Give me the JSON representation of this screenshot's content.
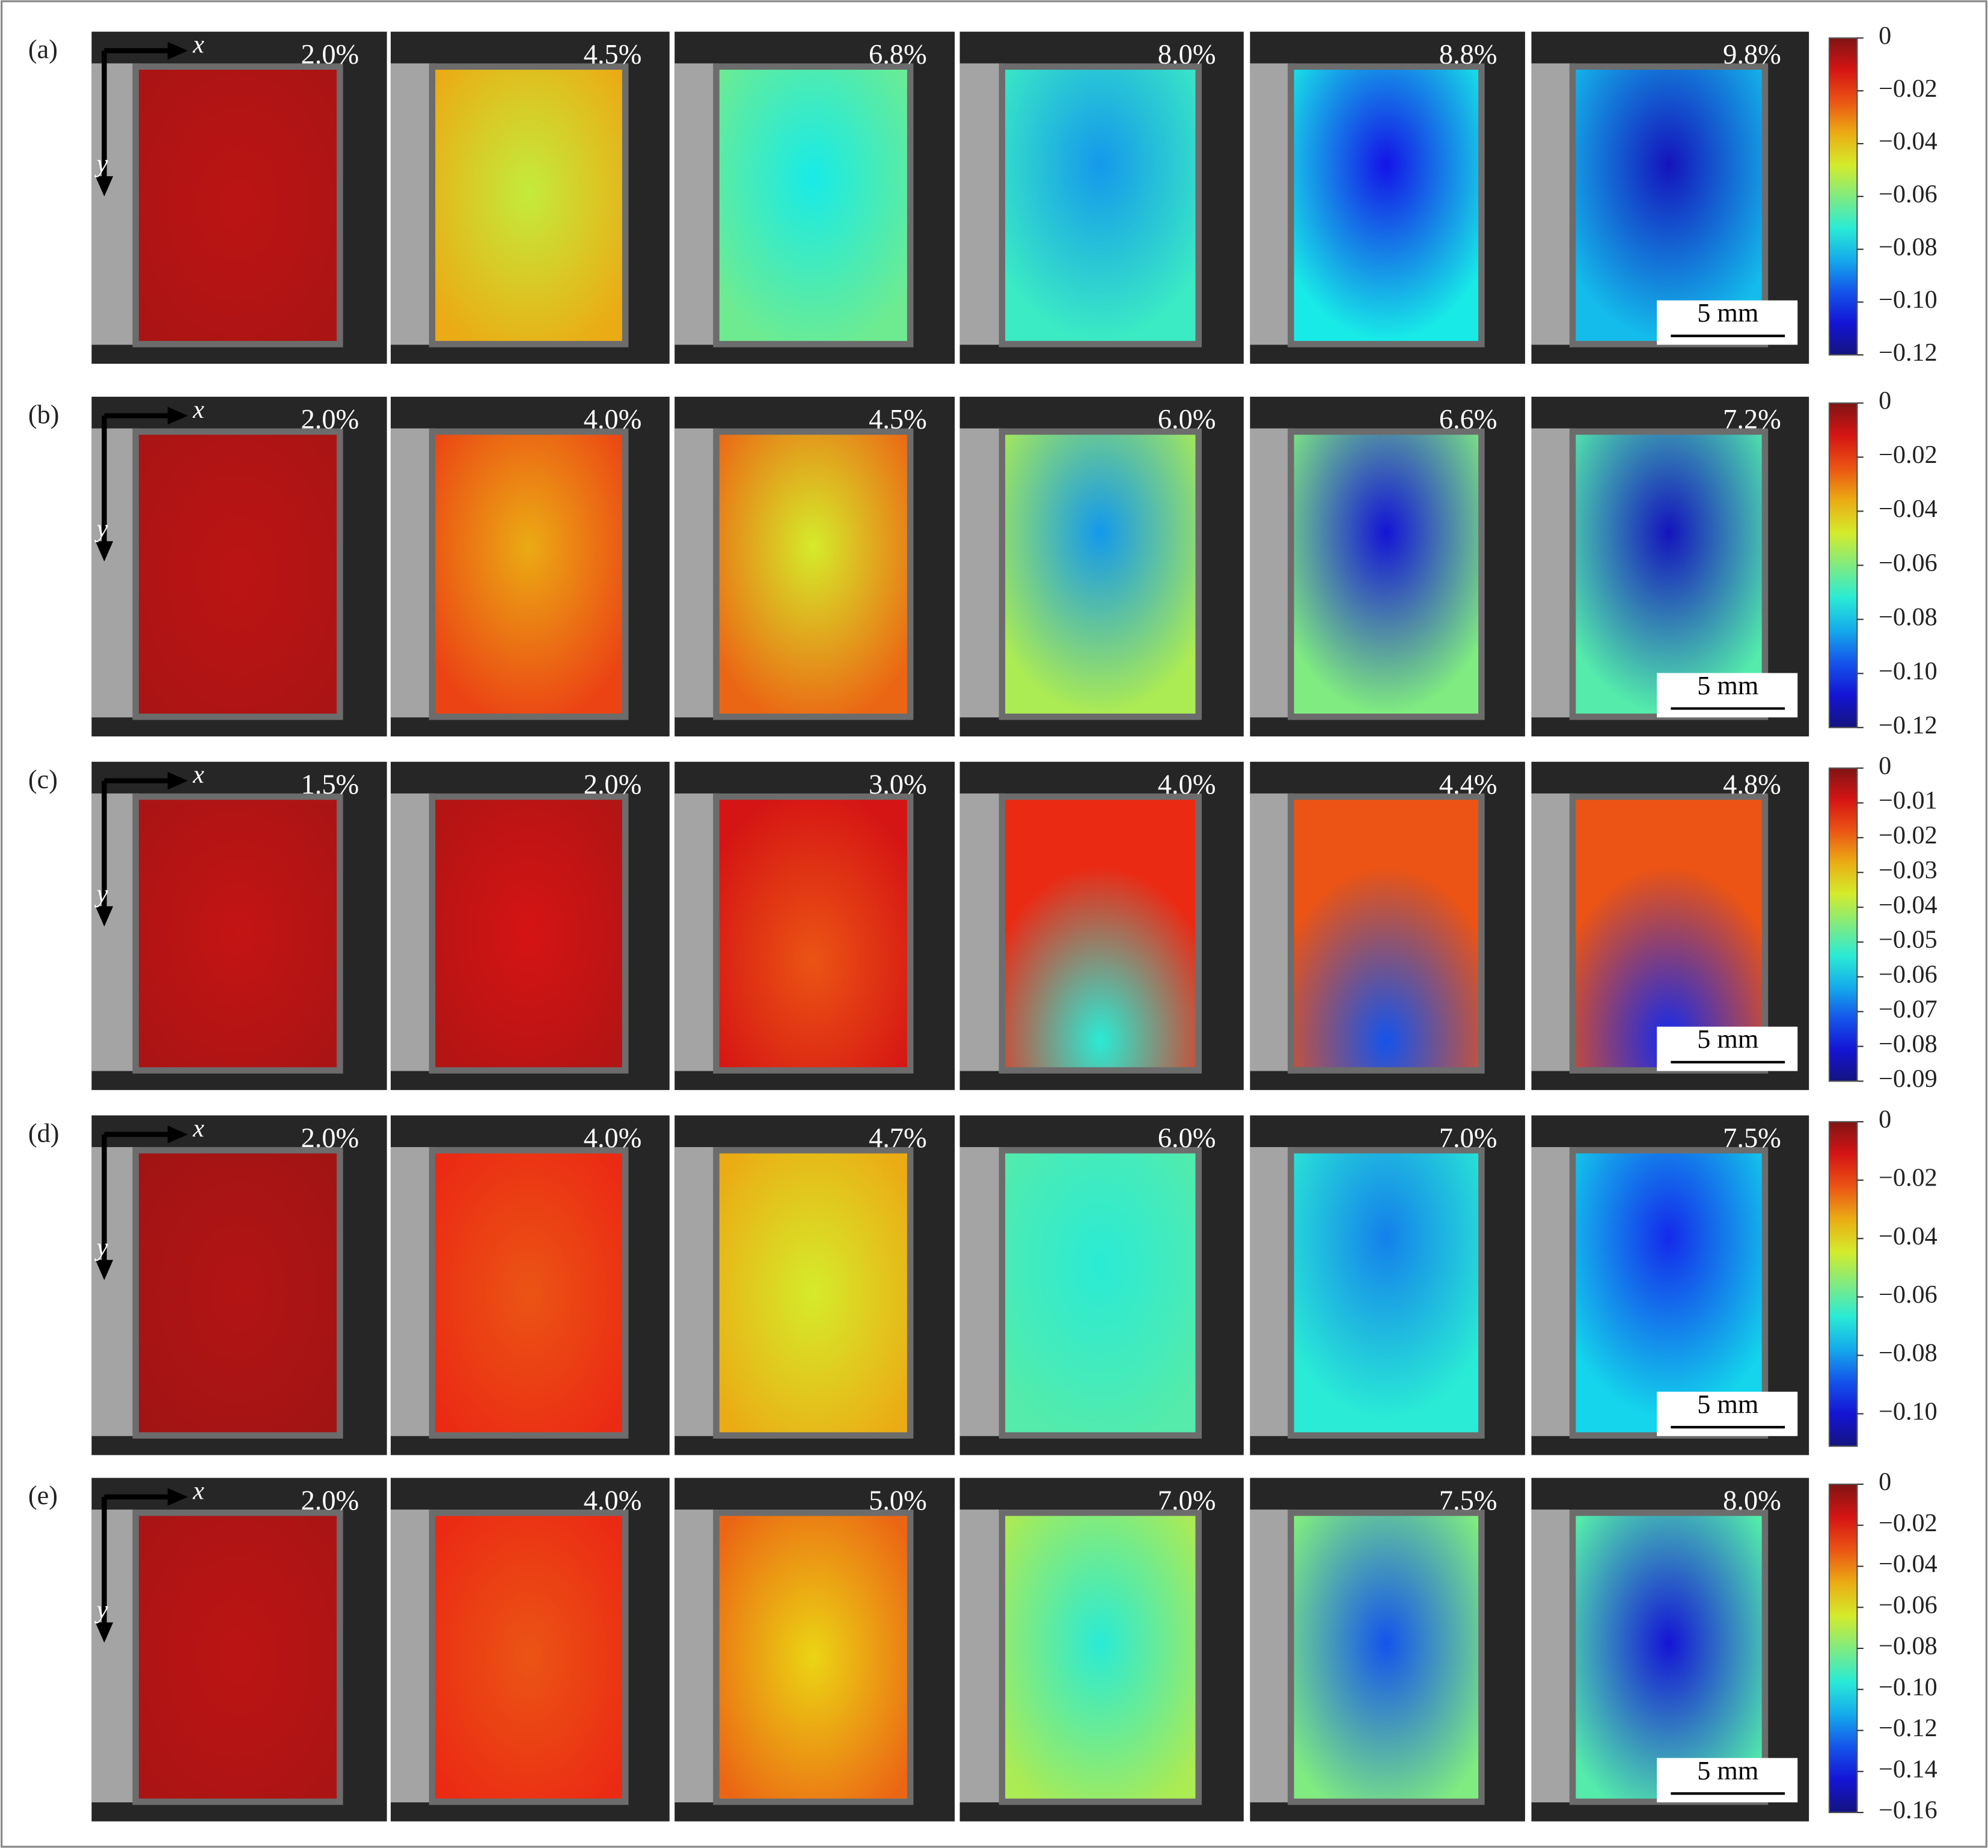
{
  "rows": [
    {
      "label": "(a)",
      "axis_x": "x",
      "axis_y": "y",
      "strains": [
        "2.0%",
        "4.5%",
        "6.8%",
        "8.0%",
        "8.8%",
        "9.8%"
      ],
      "scale_bar": "5 mm",
      "colorbar_ticks": [
        "0",
        "−0.02",
        "−0.04",
        "−0.06",
        "−0.08",
        "−0.10",
        "−0.12"
      ]
    },
    {
      "label": "(b)",
      "axis_x": "x",
      "axis_y": "y",
      "strains": [
        "2.0%",
        "4.0%",
        "4.5%",
        "6.0%",
        "6.6%",
        "7.2%"
      ],
      "scale_bar": "5 mm",
      "colorbar_ticks": [
        "0",
        "−0.02",
        "−0.04",
        "−0.06",
        "−0.08",
        "−0.10",
        "−0.12"
      ]
    },
    {
      "label": "(c)",
      "axis_x": "x",
      "axis_y": "y",
      "strains": [
        "1.5%",
        "2.0%",
        "3.0%",
        "4.0%",
        "4.4%",
        "4.8%"
      ],
      "scale_bar": "5 mm",
      "colorbar_ticks": [
        "0",
        "−0.01",
        "−0.02",
        "−0.03",
        "−0.04",
        "−0.05",
        "−0.06",
        "−0.07",
        "−0.08",
        "−0.09"
      ]
    },
    {
      "label": "(d)",
      "axis_x": "x",
      "axis_y": "y",
      "strains": [
        "2.0%",
        "4.0%",
        "4.7%",
        "6.0%",
        "7.0%",
        "7.5%"
      ],
      "scale_bar": "5 mm",
      "colorbar_ticks": [
        "0",
        "−0.02",
        "−0.04",
        "−0.06",
        "−0.08",
        "−0.10"
      ]
    },
    {
      "label": "(e)",
      "axis_x": "x",
      "axis_y": "y",
      "strains": [
        "2.0%",
        "4.0%",
        "5.0%",
        "7.0%",
        "7.5%",
        "8.0%"
      ],
      "scale_bar": "5 mm",
      "colorbar_ticks": [
        "0",
        "−0.02",
        "−0.04",
        "−0.06",
        "−0.08",
        "−0.10",
        "−0.12",
        "−0.14",
        "−0.16"
      ]
    }
  ]
}
